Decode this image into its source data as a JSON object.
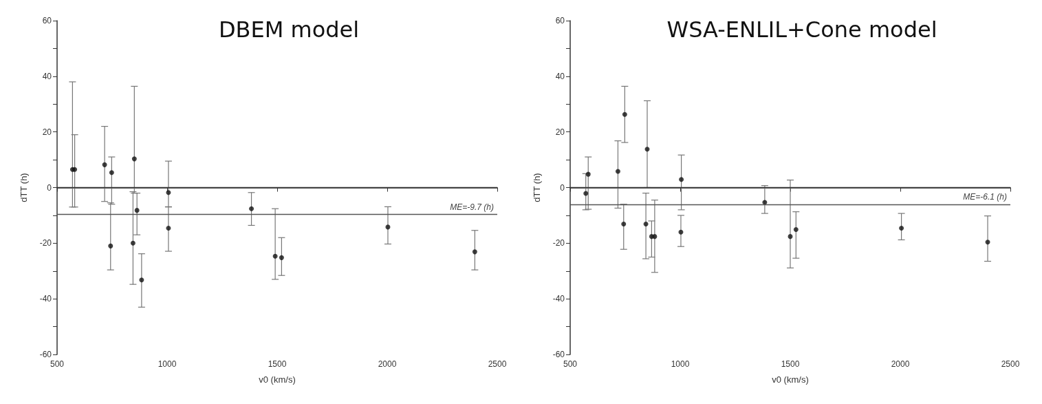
{
  "chart_data": [
    {
      "type": "scatter",
      "title": "DBEM model",
      "xlabel": "v0 (km/s)",
      "ylabel": "dTT (h)",
      "marker": "circle",
      "grid": false,
      "xlim": [
        500,
        2500
      ],
      "xticks": [
        500,
        1000,
        1500,
        2000,
        2500
      ],
      "ylim": [
        -60,
        60
      ],
      "yticks": [
        -60,
        {
          "value": -50,
          "label": null
        },
        -40,
        {
          "value": -30,
          "label": null
        },
        -20,
        {
          "value": -10,
          "label": null
        },
        0,
        {
          "value": 10,
          "label": null
        },
        20,
        {
          "value": 30,
          "label": null
        },
        40,
        {
          "value": 50,
          "label": null
        },
        60
      ],
      "series": [
        {
          "color": "#111111",
          "x": [
            570,
            580,
            716,
            743,
            748,
            845,
            851,
            863,
            884,
            1006,
            1006,
            1383,
            1491,
            1520,
            2003,
            2398
          ],
          "values": [
            6.5,
            6.5,
            8.2,
            -21,
            5.4,
            -20,
            10.3,
            -8.2,
            -33.2,
            -1.8,
            -14.6,
            -7.6,
            -24.7,
            -25.2,
            -14.2,
            -23.1
          ],
          "errors": [
            [
              -7,
              38
            ],
            [
              -7,
              19
            ],
            [
              -5,
              22
            ],
            [
              -29.6,
              -5.5
            ],
            [
              -6,
              11
            ],
            [
              -34.8,
              -1.5
            ],
            [
              -2,
              36.4
            ],
            [
              -17,
              -2
            ],
            [
              -43,
              -23.8
            ],
            [
              -7,
              9.5
            ],
            [
              -22.9,
              -6.9
            ],
            [
              -13.6,
              -1.8
            ],
            [
              -33,
              -7.6
            ],
            [
              -31.6,
              -18
            ],
            [
              -20.3,
              -6.9
            ],
            [
              -29.6,
              -15.4
            ]
          ]
        }
      ],
      "ref_lines": [
        {
          "axis": "y",
          "value": 0,
          "label": null,
          "color": "#333333"
        },
        {
          "axis": "y",
          "value": -9.7,
          "label": "ME=-9.7 (h)",
          "color": "#555555"
        }
      ]
    },
    {
      "type": "scatter",
      "title": "WSA-ENLIL+Cone model",
      "xlabel": "v0 (km/s)",
      "ylabel": "dTT (h)",
      "marker": "circle",
      "grid": false,
      "xlim": [
        500,
        2500
      ],
      "xticks": [
        500,
        1000,
        1500,
        2000,
        2500
      ],
      "ylim": [
        -60,
        60
      ],
      "yticks": [
        -60,
        {
          "value": -50,
          "label": null
        },
        -40,
        {
          "value": -30,
          "label": null
        },
        -20,
        {
          "value": -10,
          "label": null
        },
        0,
        {
          "value": 10,
          "label": null
        },
        20,
        {
          "value": 30,
          "label": null
        },
        40,
        {
          "value": 50,
          "label": null
        },
        60
      ],
      "series": [
        {
          "color": "#111111",
          "x": [
            571,
            582,
            717,
            743,
            748,
            844,
            850,
            870,
            884,
            1003,
            1005,
            1384,
            1500,
            1526,
            2005,
            2397
          ],
          "values": [
            -2.1,
            4.8,
            5.8,
            -13.1,
            26.3,
            -13.1,
            13.8,
            -17.6,
            -17.6,
            -16,
            2.9,
            -5.3,
            -17.6,
            -15.1,
            -14.6,
            -19.6
          ],
          "errors": [
            [
              -8,
              5
            ],
            [
              -7.8,
              11
            ],
            [
              -7.4,
              16.8
            ],
            [
              -22.2,
              -6
            ],
            [
              16.2,
              36.4
            ],
            [
              -25.6,
              -2
            ],
            [
              0,
              31.2
            ],
            [
              -25,
              -12
            ],
            [
              -30.5,
              -4.5
            ],
            [
              -21.2,
              -10
            ],
            [
              -8,
              11.7
            ],
            [
              -9.3,
              0.7
            ],
            [
              -28.9,
              2.7
            ],
            [
              -25.4,
              -8.7
            ],
            [
              -18.8,
              -9.3
            ],
            [
              -26.5,
              -10.2
            ]
          ]
        }
      ],
      "ref_lines": [
        {
          "axis": "y",
          "value": 0,
          "label": null,
          "color": "#333333"
        },
        {
          "axis": "y",
          "value": -6.1,
          "label": "ME=-6.1 (h)",
          "color": "#555555"
        }
      ]
    }
  ]
}
